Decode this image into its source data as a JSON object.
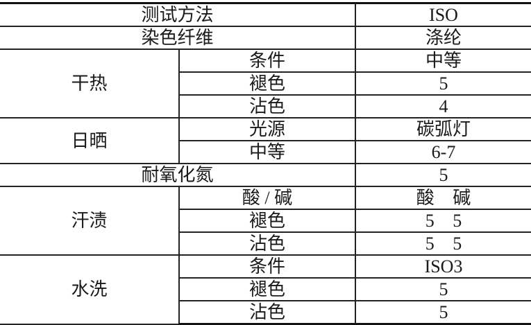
{
  "table": {
    "test_method": {
      "label": "测试方法",
      "value": "ISO"
    },
    "dyed_fiber": {
      "label": "染色纤维",
      "value": "涤纶"
    },
    "dry_heat": {
      "label": "干热",
      "rows": [
        {
          "item": "条件",
          "value": "中等"
        },
        {
          "item": "褪色",
          "value": "5"
        },
        {
          "item": "沾色",
          "value": "4"
        }
      ]
    },
    "sunlight": {
      "label": "日晒",
      "rows": [
        {
          "item": "光源",
          "value": "碳弧灯"
        },
        {
          "item": "中等",
          "value": "6-7"
        }
      ]
    },
    "nox": {
      "label": "耐氧化氮",
      "value": "5"
    },
    "perspiration": {
      "label": "汗渍",
      "rows": [
        {
          "item": "酸 / 碱",
          "value": "酸 碱"
        },
        {
          "item": "褪色",
          "value": "5 5"
        },
        {
          "item": "沾色",
          "value": "5 5"
        }
      ]
    },
    "washing": {
      "label": "水洗",
      "rows": [
        {
          "item": "条件",
          "value": "ISO3"
        },
        {
          "item": "褪色",
          "value": "5"
        },
        {
          "item": "沾色",
          "value": "5"
        }
      ]
    }
  }
}
